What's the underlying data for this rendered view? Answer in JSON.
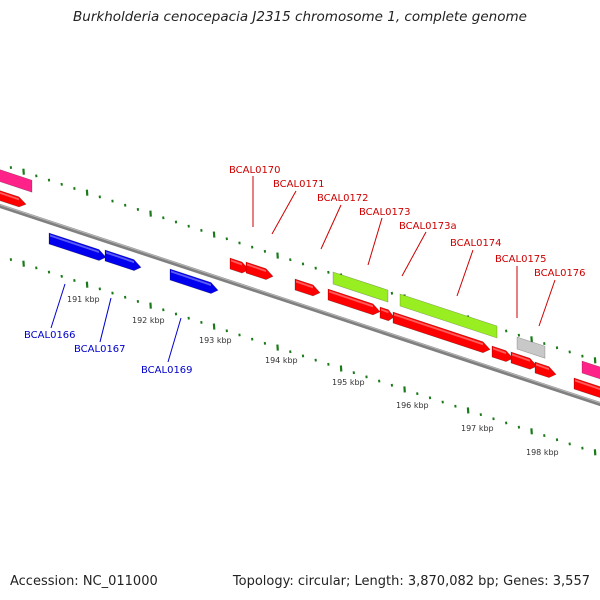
{
  "title": "Burkholderia cenocepacia J2315 chromosome 1, complete genome",
  "footer": {
    "accession": "Accession: NC_011000",
    "topology": "Topology: circular; Length: 3,870,082 bp; Genes: 3,557"
  },
  "colors": {
    "backbone": "#808080",
    "tick": "#1a7a1a",
    "label_red": "#cc0000",
    "label_blue": "#0000cc",
    "gene_red": "#ff0000",
    "gene_blue": "#0000ee",
    "gene_green": "#99ee22",
    "gene_pink": "#ff2288",
    "gene_gray": "#c8c8c8"
  },
  "kbp_labels": [
    "191 kbp",
    "192 kbp",
    "193 kbp",
    "194 kbp",
    "195 kbp",
    "196 kbp",
    "197 kbp",
    "198 kbp"
  ],
  "gene_labels": [
    {
      "text": "BCAL0170",
      "color": "red"
    },
    {
      "text": "BCAL0171",
      "color": "red"
    },
    {
      "text": "BCAL0172",
      "color": "red"
    },
    {
      "text": "BCAL0173",
      "color": "red"
    },
    {
      "text": "BCAL0173a",
      "color": "red"
    },
    {
      "text": "BCAL0174",
      "color": "red"
    },
    {
      "text": "BCAL0175",
      "color": "red"
    },
    {
      "text": "BCAL0176",
      "color": "red"
    },
    {
      "text": "BCAL0166",
      "color": "blue"
    },
    {
      "text": "BCAL0167",
      "color": "blue"
    },
    {
      "text": "BCAL0169",
      "color": "blue"
    }
  ]
}
